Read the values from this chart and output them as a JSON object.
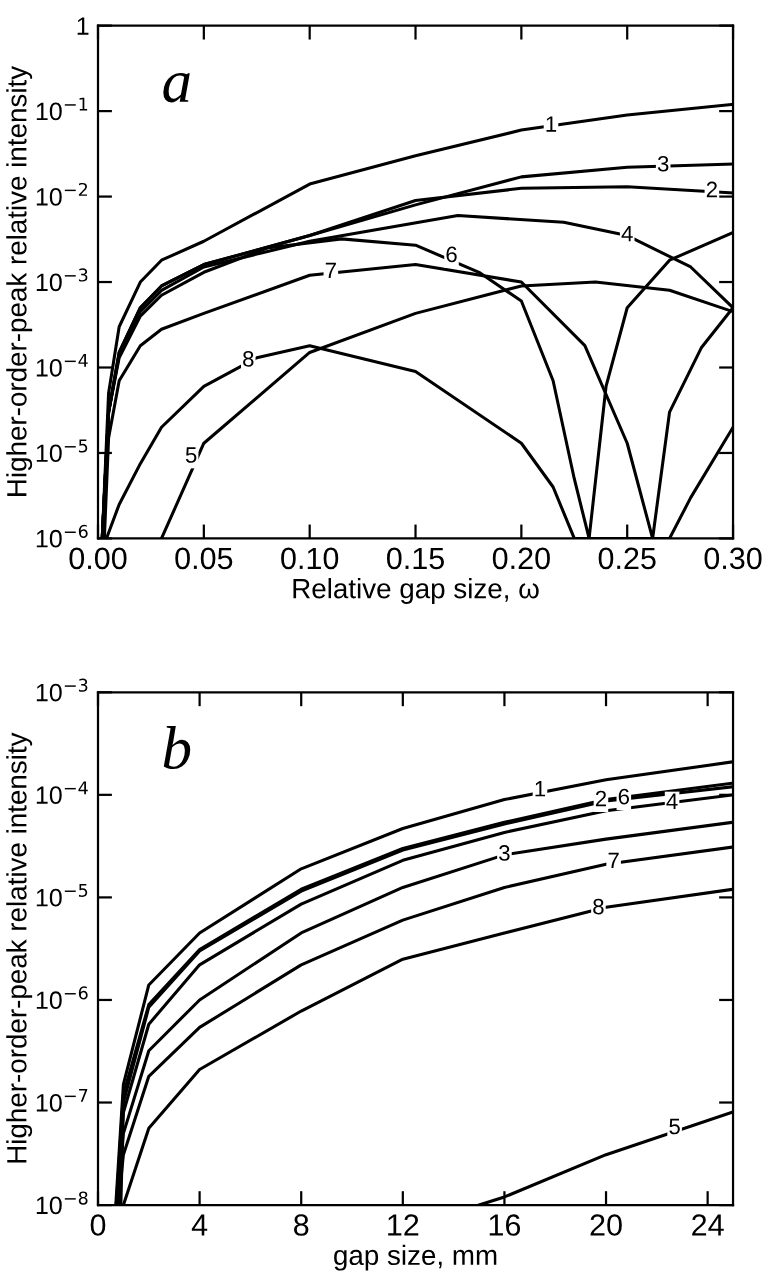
{
  "chart_data": [
    {
      "type": "line",
      "xlabel": "Relative gap size, ω",
      "ylabel": "Higher-order-peak relative intensity",
      "log": "y",
      "xlim": [
        0,
        0.3
      ],
      "ylim": [
        1e-06,
        1
      ],
      "xticks": [
        {
          "value": 0,
          "label": "0.00"
        },
        {
          "value": 0.05,
          "label": "0.05"
        },
        {
          "value": 0.1,
          "label": "0.10"
        },
        {
          "value": 0.15,
          "label": "0.15"
        },
        {
          "value": 0.2,
          "label": "0.20"
        },
        {
          "value": 0.25,
          "label": "0.25"
        },
        {
          "value": 0.3,
          "label": "0.30"
        }
      ],
      "yticks": [
        {
          "value": 1e-06,
          "label": "10$^{−6}$"
        },
        {
          "value": 1e-05,
          "label": "10$^{−5}$"
        },
        {
          "value": 0.0001,
          "label": "10$^{−4}$"
        },
        {
          "value": 0.001,
          "label": "10$^{−3}$"
        },
        {
          "value": 0.01,
          "label": "10$^{−2}$"
        },
        {
          "value": 0.1,
          "label": "10$^{−1}$"
        },
        {
          "value": 1,
          "label": "1"
        }
      ],
      "grid": false,
      "legend": false,
      "series": [
        {
          "color": "#000000",
          "x": [
            0.002,
            0.005,
            0.01,
            0.02,
            0.03,
            0.05,
            0.1,
            0.15,
            0.2,
            0.25,
            0.3
          ],
          "values": [
            1e-06,
            5e-05,
            0.0003,
            0.001,
            0.0018,
            0.003,
            0.014,
            0.03,
            0.06,
            0.09,
            0.12
          ]
        },
        {
          "color": "#000000",
          "x": [
            0.002,
            0.005,
            0.01,
            0.02,
            0.03,
            0.05,
            0.1,
            0.15,
            0.2,
            0.25,
            0.3
          ],
          "values": [
            1e-06,
            3e-05,
            0.00015,
            0.0005,
            0.0009,
            0.0016,
            0.0035,
            0.009,
            0.0125,
            0.013,
            0.011
          ]
        },
        {
          "color": "#000000",
          "x": [
            0.002,
            0.005,
            0.01,
            0.02,
            0.03,
            0.05,
            0.1,
            0.15,
            0.2,
            0.25,
            0.3
          ],
          "values": [
            1e-06,
            3e-05,
            0.00015,
            0.0005,
            0.0009,
            0.0016,
            0.0035,
            0.008,
            0.017,
            0.022,
            0.024
          ]
        },
        {
          "color": "#000000",
          "x": [
            0.002,
            0.005,
            0.01,
            0.02,
            0.03,
            0.05,
            0.1,
            0.17,
            0.22,
            0.25,
            0.28,
            0.3
          ],
          "values": [
            1e-06,
            3e-05,
            0.00014,
            0.00045,
            0.0008,
            0.0015,
            0.003,
            0.006,
            0.005,
            0.0035,
            0.0015,
            0.0005
          ]
        },
        {
          "color": "#000000",
          "x": [
            0.03,
            0.05,
            0.1,
            0.15,
            0.2,
            0.235,
            0.27,
            0.3
          ],
          "values": [
            1e-06,
            1.3e-05,
            0.00015,
            0.00043,
            0.0009,
            0.001,
            0.0008,
            0.00045
          ]
        },
        {
          "color": "#000000",
          "x": [
            0.002,
            0.005,
            0.01,
            0.02,
            0.03,
            0.05,
            0.08,
            0.115,
            0.15,
            0.18,
            0.2,
            0.215,
            0.225,
            0.232,
            0.24,
            0.25,
            0.27,
            0.3
          ],
          "values": [
            1e-06,
            3e-05,
            0.00013,
            0.0004,
            0.0007,
            0.0013,
            0.0025,
            0.0032,
            0.0027,
            0.0013,
            0.0006,
            7e-05,
            5e-06,
            1e-06,
            6e-05,
            0.0005,
            0.0018,
            0.0038
          ]
        },
        {
          "color": "#000000",
          "x": [
            0.003,
            0.005,
            0.01,
            0.02,
            0.03,
            0.05,
            0.1,
            0.15,
            0.2,
            0.23,
            0.25,
            0.262,
            0.27,
            0.285,
            0.3
          ],
          "values": [
            1e-06,
            1.5e-05,
            7e-05,
            0.00018,
            0.00028,
            0.00043,
            0.0012,
            0.0016,
            0.001,
            0.00018,
            1.3e-05,
            1e-06,
            3e-05,
            0.00017,
            0.0005
          ]
        },
        {
          "color": "#000000",
          "x": [
            0.004,
            0.01,
            0.02,
            0.03,
            0.05,
            0.075,
            0.1,
            0.15,
            0.2,
            0.215,
            0.225,
            0.27,
            0.28,
            0.3
          ],
          "values": [
            1e-06,
            2.5e-06,
            7.5e-06,
            2e-05,
            6e-05,
            0.00013,
            0.00018,
            9e-05,
            1.3e-05,
            4e-06,
            1e-06,
            1e-06,
            3e-06,
            2e-05
          ]
        }
      ],
      "annotations": [
        "a",
        {
          "text": "1",
          "x": 0.214,
          "y": 0.067
        },
        {
          "text": "3",
          "x": 0.267,
          "y": 0.023
        },
        {
          "text": "2",
          "x": 0.29,
          "y": 0.0115
        },
        {
          "text": "4",
          "x": 0.25,
          "y": 0.0035
        },
        {
          "text": "6",
          "x": 0.167,
          "y": 0.002
        },
        {
          "text": "7",
          "x": 0.11,
          "y": 0.0013
        },
        {
          "text": "8",
          "x": 0.071,
          "y": 0.00012
        },
        {
          "text": "5",
          "x": 0.044,
          "y": 9e-06
        }
      ]
    },
    {
      "type": "line",
      "xlabel": "gap size, mm",
      "ylabel": "Higher-order-peak relative intensity",
      "log": "y",
      "xlim": [
        0,
        25
      ],
      "ylim": [
        1e-08,
        0.001
      ],
      "xticks": [
        0,
        4,
        8,
        12,
        16,
        20,
        24
      ],
      "yticks": [
        {
          "value": 1e-08,
          "label": "10$^{−8}$"
        },
        {
          "value": 1e-07,
          "label": "10$^{−7}$"
        },
        {
          "value": 1e-06,
          "label": "10$^{−6}$"
        },
        {
          "value": 1e-05,
          "label": "10$^{−5}$"
        },
        {
          "value": 0.0001,
          "label": "10$^{−4}$"
        },
        {
          "value": 0.001,
          "label": "10$^{−3}$"
        }
      ],
      "grid": false,
      "legend": false,
      "series": [
        {
          "color": "#000000",
          "x": [
            0.7,
            1,
            2,
            4,
            8,
            12,
            16,
            20,
            25
          ],
          "values": [
            1e-08,
            1.5e-07,
            1.4e-06,
            4.5e-06,
            1.9e-05,
            4.7e-05,
            9e-05,
            0.00014,
            0.00021
          ]
        },
        {
          "color": "#000000",
          "x": [
            0.72,
            1,
            2,
            4,
            8,
            12,
            16,
            20,
            25
          ],
          "values": [
            1e-08,
            1.2e-07,
            9e-07,
            3.1e-06,
            1.2e-05,
            3e-05,
            5.4e-05,
            9e-05,
            0.00013
          ]
        },
        {
          "color": "#000000",
          "x": [
            0.78,
            1,
            2,
            4,
            8,
            12,
            16,
            20,
            25
          ],
          "values": [
            1e-08,
            5e-08,
            3.2e-07,
            1e-06,
            4.5e-06,
            1.25e-05,
            2.6e-05,
            3.7e-05,
            5.4e-05
          ]
        },
        {
          "color": "#000000",
          "x": [
            0.75,
            1,
            2,
            4,
            8,
            12,
            16,
            20,
            25
          ],
          "values": [
            1e-08,
            8e-08,
            5.8e-07,
            2.2e-06,
            8.6e-06,
            2.3e-05,
            4.3e-05,
            7e-05,
            0.0001
          ]
        },
        {
          "color": "#000000",
          "x": [
            15,
            16,
            20,
            25
          ],
          "values": [
            1e-08,
            1.2e-08,
            3.1e-08,
            8.1e-08
          ]
        },
        {
          "color": "#000000",
          "x": [
            0.9,
            1,
            2,
            4,
            8,
            12,
            16,
            20,
            25
          ],
          "values": [
            1e-08,
            1e-07,
            8.5e-07,
            3e-06,
            1.15e-05,
            2.9e-05,
            5.2e-05,
            8.7e-05,
            0.00012
          ]
        },
        {
          "color": "#000000",
          "x": [
            0.8,
            1,
            2,
            4,
            8,
            12,
            16,
            20,
            25
          ],
          "values": [
            1e-08,
            3.1e-08,
            1.8e-07,
            5.4e-07,
            2.2e-06,
            6e-06,
            1.25e-05,
            2.1e-05,
            3.1e-05
          ]
        },
        {
          "color": "#000000",
          "x": [
            1,
            2,
            4,
            8,
            12,
            16,
            20,
            25
          ],
          "values": [
            1e-08,
            5.6e-08,
            2.1e-07,
            7.8e-07,
            2.5e-06,
            4.5e-06,
            8e-06,
            1.2e-05
          ]
        }
      ],
      "annotations": [
        "b",
        {
          "text": "1",
          "x": 17.4,
          "y": 0.00011
        },
        {
          "text": "2",
          "x": 19.8,
          "y": 8.8e-05
        },
        {
          "text": "6",
          "x": 20.7,
          "y": 9.2e-05
        },
        {
          "text": "4",
          "x": 22.6,
          "y": 8.3e-05
        },
        {
          "text": "3",
          "x": 16,
          "y": 2.6e-05
        },
        {
          "text": "7",
          "x": 20.3,
          "y": 2.2e-05
        },
        {
          "text": "8",
          "x": 19.7,
          "y": 7.8e-06
        },
        {
          "text": "5",
          "x": 22.7,
          "y": 5.6e-08
        }
      ]
    }
  ]
}
